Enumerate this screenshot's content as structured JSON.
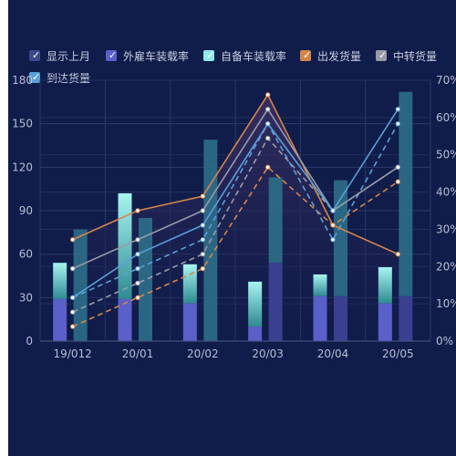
{
  "legend": [
    {
      "label": "显示上月",
      "color": "#3a4a8a",
      "checked": true
    },
    {
      "label": "外雇车装载率",
      "color": "#5b5fc9",
      "checked": true
    },
    {
      "label": "自备车装载率",
      "color": "#8ee8e8",
      "checked": true
    },
    {
      "label": "出发货量",
      "color": "#d4864a",
      "checked": true
    },
    {
      "label": "中转货量",
      "color": "#9a9aa8",
      "checked": true
    },
    {
      "label": "到达货量",
      "color": "#5aa0d8",
      "checked": true
    }
  ],
  "chart_data": {
    "type": "bar",
    "categories": [
      "19/012",
      "20/01",
      "20/02",
      "20/03",
      "20/04",
      "20/05"
    ],
    "left_axis": {
      "min": 0,
      "max": 180,
      "ticks": [
        0,
        30,
        60,
        90,
        120,
        150,
        180
      ]
    },
    "right_axis": {
      "min": 0,
      "max": 70,
      "ticks": [
        "0%",
        "10%",
        "20%",
        "30%",
        "40%",
        "50%",
        "60%",
        "70%"
      ]
    },
    "bars_current": {
      "outsourced": [
        29,
        29,
        26,
        10,
        31,
        26
      ],
      "own": [
        25,
        73,
        27,
        31,
        15,
        25
      ]
    },
    "bars_last_month": {
      "outsourced": [
        0,
        0,
        0,
        54,
        31,
        31
      ],
      "own": [
        77,
        85,
        139,
        59,
        80,
        141
      ]
    },
    "lines_current": [
      {
        "name": "出发货量",
        "color": "#d4864a",
        "values": [
          70,
          90,
          100,
          170,
          80,
          60
        ]
      },
      {
        "name": "中转货量",
        "color": "#9a9aa8",
        "values": [
          50,
          70,
          90,
          160,
          90,
          120
        ]
      },
      {
        "name": "到达货量",
        "color": "#5aa0d8",
        "values": [
          30,
          60,
          80,
          150,
          90,
          160
        ]
      }
    ],
    "lines_last_month": [
      {
        "name": "出发货量",
        "color": "#d4864a",
        "values": [
          10,
          30,
          50,
          120,
          80,
          110
        ]
      },
      {
        "name": "中转货量",
        "color": "#9a9aa8",
        "values": [
          20,
          40,
          60,
          140,
          90,
          120
        ]
      },
      {
        "name": "到达货量",
        "color": "#5aa0d8",
        "values": [
          30,
          50,
          70,
          150,
          70,
          150
        ]
      }
    ]
  }
}
